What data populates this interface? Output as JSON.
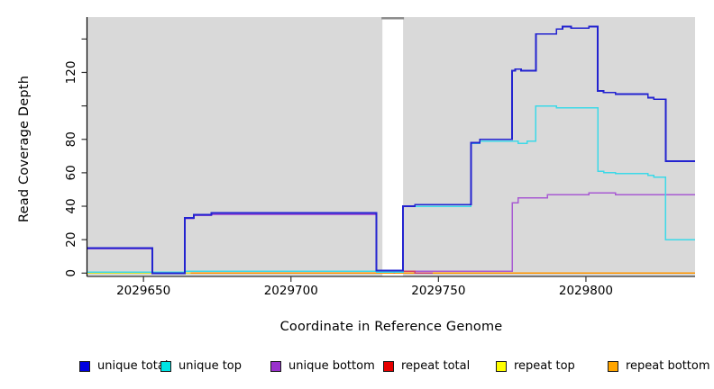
{
  "chart_data": {
    "type": "line",
    "title": "",
    "xlabel": "Coordinate in Reference Genome",
    "ylabel": "Read Coverage Depth",
    "xlim": [
      2029631,
      2029837
    ],
    "ylim": [
      0,
      153
    ],
    "grid": false,
    "plot_bg": "#d9d9d9",
    "gap_x": [
      2029731,
      2029738
    ],
    "gap_cap_color": "#8c8c8c",
    "x_ticks": [
      {
        "v": 2029650,
        "label": "2029650"
      },
      {
        "v": 2029700,
        "label": "2029700"
      },
      {
        "v": 2029750,
        "label": "2029750"
      },
      {
        "v": 2029800,
        "label": "2029800"
      }
    ],
    "y_ticks": [
      {
        "v": 0,
        "label": "0"
      },
      {
        "v": 20,
        "label": "20"
      },
      {
        "v": 40,
        "label": "40"
      },
      {
        "v": 60,
        "label": "60"
      },
      {
        "v": 80,
        "label": "80"
      },
      {
        "v": 100,
        "label": ""
      },
      {
        "v": 120,
        "label": "120"
      },
      {
        "v": 140,
        "label": ""
      }
    ],
    "legend_position": "bottom",
    "series": [
      {
        "name": "unique total",
        "color": "#2323d0",
        "swatch": "#0000e0",
        "width": 1.9,
        "points": [
          [
            2029631,
            15
          ],
          [
            2029653,
            15
          ],
          [
            2029653,
            0
          ],
          [
            2029664,
            0
          ],
          [
            2029664,
            33
          ],
          [
            2029667,
            33
          ],
          [
            2029667,
            35
          ],
          [
            2029673,
            35
          ],
          [
            2029673,
            36
          ],
          [
            2029729,
            36
          ],
          [
            2029729,
            1.5
          ],
          [
            2029738,
            1.5
          ],
          [
            2029738,
            40
          ],
          [
            2029742,
            40
          ],
          [
            2029742,
            41
          ],
          [
            2029761,
            41
          ],
          [
            2029761,
            78
          ],
          [
            2029764,
            78
          ],
          [
            2029764,
            80
          ],
          [
            2029775,
            80
          ],
          [
            2029775,
            121
          ],
          [
            2029776,
            121
          ],
          [
            2029776,
            122
          ],
          [
            2029778,
            122
          ],
          [
            2029778,
            121
          ],
          [
            2029783,
            121
          ],
          [
            2029783,
            143
          ],
          [
            2029790,
            143
          ],
          [
            2029790,
            146
          ],
          [
            2029792,
            146
          ],
          [
            2029792,
            147.5
          ],
          [
            2029795,
            147.5
          ],
          [
            2029795,
            146.5
          ],
          [
            2029801,
            146.5
          ],
          [
            2029801,
            147.5
          ],
          [
            2029804,
            147.5
          ],
          [
            2029804,
            109
          ],
          [
            2029806,
            109
          ],
          [
            2029806,
            108
          ],
          [
            2029810,
            108
          ],
          [
            2029810,
            107
          ],
          [
            2029821,
            107
          ],
          [
            2029821,
            105
          ],
          [
            2029823,
            105
          ],
          [
            2029823,
            104
          ],
          [
            2029827,
            104
          ],
          [
            2029827,
            67
          ],
          [
            2029837,
            67
          ]
        ]
      },
      {
        "name": "unique top",
        "color": "#3cd9e8",
        "swatch": "#00e5e5",
        "width": 1.5,
        "points": [
          [
            2029631,
            0.6
          ],
          [
            2029664,
            0.6
          ],
          [
            2029664,
            1
          ],
          [
            2029729,
            1
          ],
          [
            2029729,
            0.6
          ],
          [
            2029738,
            0.6
          ],
          [
            2029738,
            40
          ],
          [
            2029761,
            40
          ],
          [
            2029761,
            77.5
          ],
          [
            2029764,
            77.5
          ],
          [
            2029764,
            79
          ],
          [
            2029777,
            79
          ],
          [
            2029777,
            77.5
          ],
          [
            2029780,
            77.5
          ],
          [
            2029780,
            79
          ],
          [
            2029783,
            79
          ],
          [
            2029783,
            100
          ],
          [
            2029790,
            100
          ],
          [
            2029790,
            99
          ],
          [
            2029804,
            99
          ],
          [
            2029804,
            61
          ],
          [
            2029806,
            61
          ],
          [
            2029806,
            60
          ],
          [
            2029810,
            60
          ],
          [
            2029810,
            59.5
          ],
          [
            2029821,
            59.5
          ],
          [
            2029821,
            58.5
          ],
          [
            2029823,
            58.5
          ],
          [
            2029823,
            57.5
          ],
          [
            2029827,
            57.5
          ],
          [
            2029827,
            20
          ],
          [
            2029837,
            20
          ]
        ]
      },
      {
        "name": "unique bottom",
        "color": "#a85ad2",
        "swatch": "#9932cc",
        "width": 1.5,
        "points": [
          [
            2029631,
            14.5
          ],
          [
            2029653,
            14.5
          ],
          [
            2029653,
            0
          ],
          [
            2029664,
            0
          ],
          [
            2029664,
            32.5
          ],
          [
            2029667,
            32.5
          ],
          [
            2029667,
            34.5
          ],
          [
            2029673,
            34.5
          ],
          [
            2029673,
            35
          ],
          [
            2029729,
            35
          ],
          [
            2029729,
            1
          ],
          [
            2029775,
            1
          ],
          [
            2029775,
            42
          ],
          [
            2029777,
            42
          ],
          [
            2029777,
            45
          ],
          [
            2029787,
            45
          ],
          [
            2029787,
            47
          ],
          [
            2029801,
            47
          ],
          [
            2029801,
            48
          ],
          [
            2029810,
            48
          ],
          [
            2029810,
            47
          ],
          [
            2029837,
            47
          ]
        ]
      },
      {
        "name": "repeat total",
        "color": "#d0406a",
        "swatch": "#e60000",
        "width": 1.4,
        "points": [
          [
            2029735,
            0
          ],
          [
            2029735,
            1
          ],
          [
            2029742,
            1
          ],
          [
            2029742,
            0
          ],
          [
            2029748,
            0
          ]
        ]
      },
      {
        "name": "repeat top",
        "color": "#e0e030",
        "swatch": "#ffff00",
        "width": 1.4,
        "points": [
          [
            2029631,
            0
          ],
          [
            2029666,
            0
          ]
        ]
      },
      {
        "name": "repeat bottom",
        "color": "#ff9500",
        "swatch": "#ffa500",
        "width": 1.6,
        "points": [
          [
            2029666,
            0
          ],
          [
            2029837,
            0
          ]
        ]
      }
    ]
  }
}
